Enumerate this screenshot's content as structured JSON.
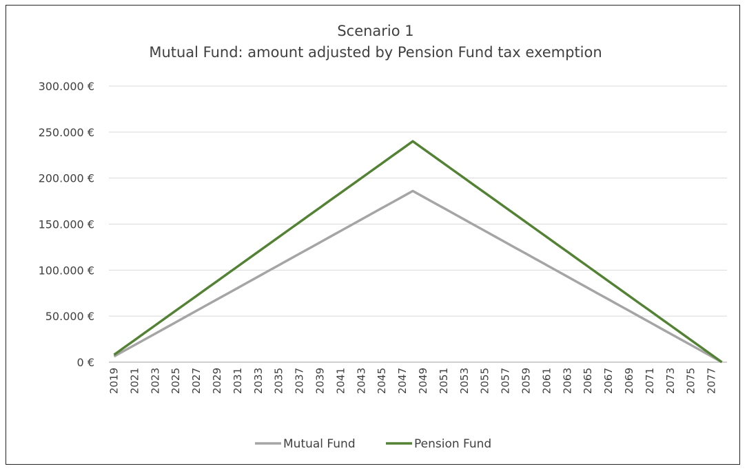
{
  "chart_data": {
    "type": "line",
    "title": "Scenario 1",
    "subtitle": "Mutual Fund: amount adjusted by Pension Fund tax exemption",
    "xlabel": "",
    "ylabel": "",
    "ylim": [
      0,
      300000
    ],
    "yticks": [
      0,
      50000,
      100000,
      150000,
      200000,
      250000,
      300000
    ],
    "ytick_labels": [
      "0 €",
      "50.000 €",
      "100.000 €",
      "150.000 €",
      "200.000 €",
      "250.000 €",
      "300.000 €"
    ],
    "grid": true,
    "legend_position": "bottom",
    "x": [
      2019,
      2020,
      2021,
      2022,
      2023,
      2024,
      2025,
      2026,
      2027,
      2028,
      2029,
      2030,
      2031,
      2032,
      2033,
      2034,
      2035,
      2036,
      2037,
      2038,
      2039,
      2040,
      2041,
      2042,
      2043,
      2044,
      2045,
      2046,
      2047,
      2048,
      2049,
      2050,
      2051,
      2052,
      2053,
      2054,
      2055,
      2056,
      2057,
      2058,
      2059,
      2060,
      2061,
      2062,
      2063,
      2064,
      2065,
      2066,
      2067,
      2068,
      2069,
      2070,
      2071,
      2072,
      2073,
      2074,
      2075,
      2076,
      2077,
      2078
    ],
    "series": [
      {
        "name": "Mutual Fund",
        "color": "#A5A5A5",
        "values": [
          6200,
          12400,
          18600,
          24800,
          31000,
          37200,
          43400,
          49600,
          55800,
          62000,
          68200,
          74400,
          80600,
          86800,
          93000,
          99200,
          105400,
          111600,
          117800,
          124000,
          130200,
          136400,
          142600,
          148800,
          155000,
          161200,
          167400,
          173600,
          179800,
          186000,
          179800,
          173600,
          167400,
          161200,
          155000,
          148800,
          142600,
          136400,
          130200,
          124000,
          117800,
          111600,
          105400,
          99200,
          93000,
          86800,
          80600,
          74400,
          68200,
          62000,
          55800,
          49600,
          43400,
          37200,
          31000,
          24800,
          18600,
          12400,
          6200,
          0
        ]
      },
      {
        "name": "Pension Fund",
        "color": "#548235",
        "values": [
          8000,
          16000,
          24000,
          32000,
          40000,
          48000,
          56000,
          64000,
          72000,
          80000,
          88000,
          96000,
          104000,
          112000,
          120000,
          128000,
          136000,
          144000,
          152000,
          160000,
          168000,
          176000,
          184000,
          192000,
          200000,
          208000,
          216000,
          224000,
          232000,
          240000,
          232000,
          224000,
          216000,
          208000,
          200000,
          192000,
          184000,
          176000,
          168000,
          160000,
          152000,
          144000,
          136000,
          128000,
          120000,
          112000,
          104000,
          96000,
          88000,
          80000,
          72000,
          64000,
          56000,
          48000,
          40000,
          32000,
          24000,
          16000,
          8000,
          0
        ]
      }
    ]
  }
}
